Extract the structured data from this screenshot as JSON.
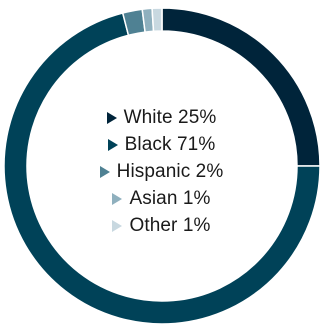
{
  "chart_data": {
    "type": "pie",
    "variant": "donut",
    "title": "",
    "series": [
      {
        "name": "White",
        "value": 25,
        "label": "25%",
        "color": "#00243a"
      },
      {
        "name": "Black",
        "value": 71,
        "label": "71%",
        "color": "#004258"
      },
      {
        "name": "Hispanic",
        "value": 2,
        "label": "2%",
        "color": "#4f8193"
      },
      {
        "name": "Asian",
        "value": 1,
        "label": "1%",
        "color": "#8fb0be"
      },
      {
        "name": "Other",
        "value": 1,
        "label": "1%",
        "color": "#c8d8e0"
      }
    ],
    "legend_position": "center",
    "start_angle": "top, clockwise"
  }
}
